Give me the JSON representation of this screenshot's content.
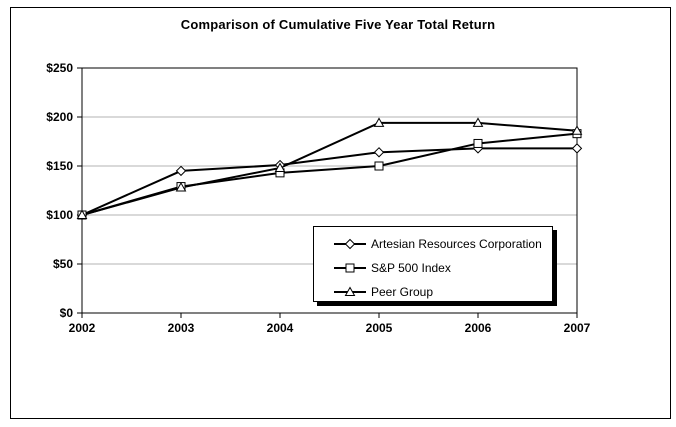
{
  "window": {
    "background_color": "#ffffff",
    "border_color": "#000000"
  },
  "chart_data": {
    "type": "line",
    "title": "Comparison of Cumulative Five Year Total Return",
    "categories": [
      "2002",
      "2003",
      "2004",
      "2005",
      "2006",
      "2007"
    ],
    "series": [
      {
        "name": "Artesian Resources Corporation",
        "marker": "diamond",
        "color": "#000000",
        "values": [
          100,
          145,
          151,
          164,
          168,
          168
        ]
      },
      {
        "name": "S&P 500 Index",
        "marker": "square",
        "color": "#000000",
        "values": [
          100,
          129,
          143,
          150,
          173,
          183
        ]
      },
      {
        "name": "Peer Group",
        "marker": "triangle",
        "color": "#000000",
        "values": [
          100,
          128,
          148,
          194,
          194,
          186
        ]
      }
    ],
    "y_ticks": [
      {
        "label": "$0",
        "value": 0
      },
      {
        "label": "$50",
        "value": 50
      },
      {
        "label": "$100",
        "value": 100
      },
      {
        "label": "$150",
        "value": 150
      },
      {
        "label": "$200",
        "value": 200
      },
      {
        "label": "$250",
        "value": 250
      }
    ],
    "ylim": [
      0,
      250
    ],
    "xlabel": "",
    "ylabel": "",
    "grid": "horizontal",
    "gridline_color": "#b3b3b3",
    "marker_fill": "#ffffff",
    "legend_position": "inside-bottom-right"
  }
}
